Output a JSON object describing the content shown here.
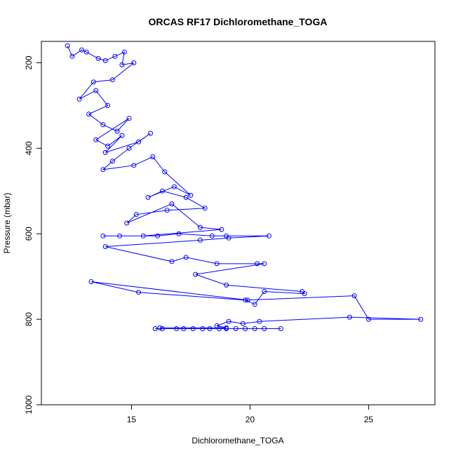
{
  "chart_data": {
    "type": "scatter",
    "title": "ORCAS RF17 Dichloromethane_TOGA",
    "xlabel": "Dichloromethane_TOGA",
    "ylabel": "Pressure (mbar)",
    "xlim": [
      11.2,
      27.8
    ],
    "ylim": [
      1000,
      150
    ],
    "y_reversed": true,
    "x_ticks": [
      15,
      20,
      25
    ],
    "y_ticks": [
      200,
      400,
      600,
      800,
      1000
    ],
    "grid": false,
    "series_color": "#0000ff",
    "marker": "open-circle",
    "connected": true,
    "series": [
      {
        "x": [
          12.3,
          12.5,
          12.9,
          13.1,
          13.6,
          13.9,
          14.3,
          14.7,
          14.6,
          15.1,
          14.2,
          13.4,
          12.8,
          13.5,
          14.0,
          13.2,
          13.8,
          14.4,
          14.9,
          13.5,
          14.0,
          14.6,
          13.9,
          15.3,
          15.8,
          14.9,
          14.2,
          13.8,
          15.1,
          15.9,
          16.4,
          17.5,
          16.8,
          15.7,
          16.3,
          17.3,
          18.1,
          16.5,
          15.2,
          14.8,
          16.7,
          17.9,
          18.8,
          15.5,
          14.5,
          13.8,
          16.1,
          17.0,
          18.4,
          19.0,
          20.8,
          19.1,
          17.9,
          13.9,
          16.7,
          17.3,
          18.6,
          20.3,
          20.6,
          17.7,
          19.0,
          22.2,
          22.3,
          20.6,
          20.2,
          19.8,
          15.3,
          13.3,
          19.9,
          24.4,
          25.0,
          27.2,
          24.2,
          20.4,
          19.7,
          19.1,
          18.6,
          19.0,
          16.2
        ],
        "y": [
          160,
          185,
          170,
          175,
          190,
          195,
          185,
          175,
          205,
          200,
          240,
          245,
          285,
          265,
          300,
          320,
          345,
          360,
          330,
          380,
          395,
          370,
          410,
          385,
          365,
          400,
          430,
          450,
          440,
          420,
          455,
          510,
          490,
          515,
          500,
          515,
          540,
          545,
          555,
          575,
          530,
          585,
          590,
          605,
          605,
          605,
          605,
          600,
          605,
          605,
          605,
          610,
          615,
          630,
          665,
          655,
          670,
          670,
          670,
          695,
          720,
          735,
          740,
          735,
          765,
          755,
          737,
          712,
          755,
          745,
          800,
          800,
          795,
          805,
          810,
          805,
          815,
          820,
          820
        ]
      },
      {
        "x": [
          16.0,
          16.3,
          16.9,
          17.2,
          17.6,
          18.0,
          18.3,
          18.7,
          19.0,
          19.4,
          19.8,
          20.2,
          20.6,
          21.3
        ],
        "y": [
          822,
          822,
          822,
          822,
          822,
          822,
          822,
          822,
          822,
          822,
          822,
          822,
          822,
          822
        ]
      }
    ]
  }
}
